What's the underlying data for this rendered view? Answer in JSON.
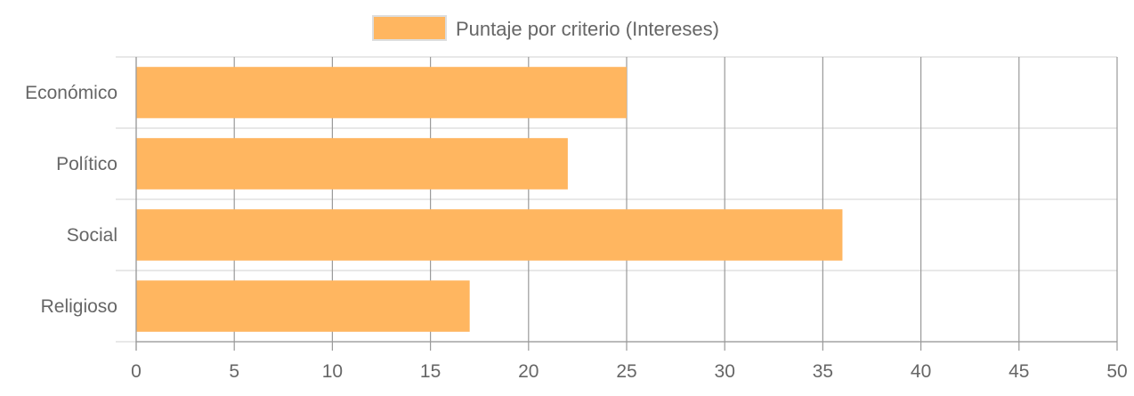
{
  "chart_data": {
    "type": "bar",
    "orientation": "horizontal",
    "categories": [
      "Económico",
      "Político",
      "Social",
      "Religioso"
    ],
    "series": [
      {
        "name": "Puntaje por criterio (Intereses)",
        "values": [
          25,
          22,
          36,
          17
        ],
        "color": "#ffb660"
      }
    ],
    "xlim": [
      0,
      50
    ],
    "xticks": [
      "0",
      "5",
      "10",
      "15",
      "20",
      "25",
      "30",
      "35",
      "40",
      "45",
      "50"
    ],
    "grid": true,
    "legend_position": "top-center",
    "grid_color": "#e0e0e0",
    "vertical_grid_color": "#9a9a9a",
    "text_color": "#666666"
  }
}
